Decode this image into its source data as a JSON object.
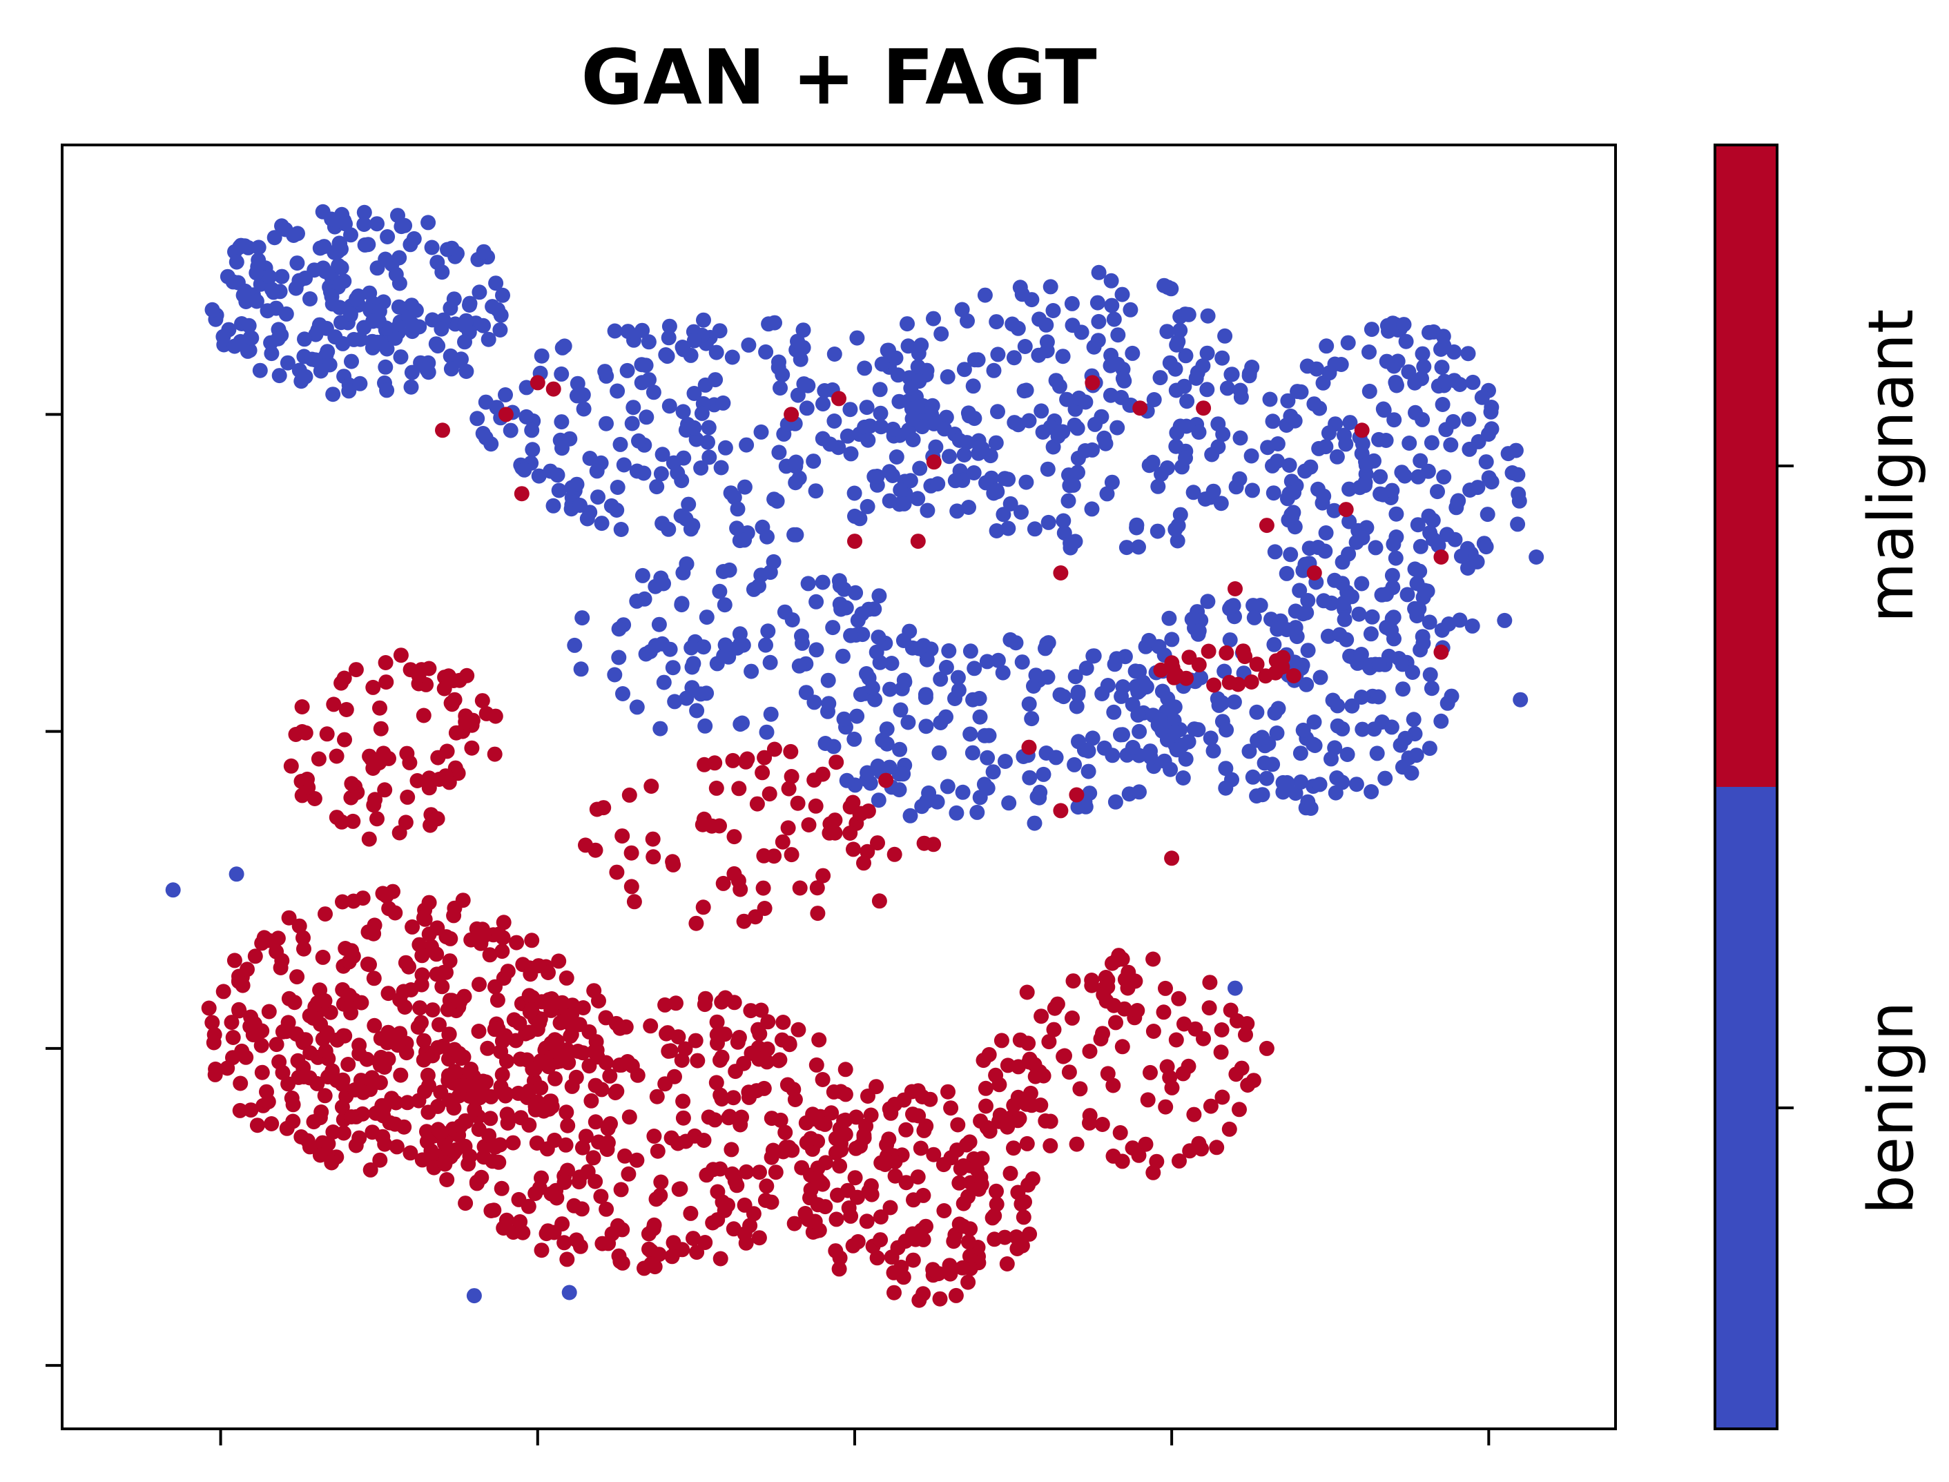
{
  "chart_data": {
    "type": "scatter",
    "title": "GAN + FAGT",
    "xlabel": "",
    "ylabel": "",
    "xlim": [
      -0.5,
      4.4
    ],
    "ylim": [
      -0.2,
      3.85
    ],
    "x_ticks": [
      0,
      1,
      2,
      3,
      4
    ],
    "y_ticks": [
      0,
      1,
      2,
      3
    ],
    "tick_labels_shown": false,
    "grid": false,
    "colorbar": {
      "categories": [
        "benign",
        "malignant"
      ],
      "colors": [
        "#3b4cc0",
        "#b40426"
      ]
    },
    "series": [
      {
        "name": "benign",
        "color": "#3b4cc0",
        "regions": [
          {
            "cx": 0.45,
            "cy": 3.35,
            "rx": 0.5,
            "ry": 0.3,
            "n": 220
          },
          {
            "cx": 1.6,
            "cy": 2.95,
            "rx": 0.8,
            "ry": 0.35,
            "n": 230
          },
          {
            "cx": 2.7,
            "cy": 3.0,
            "rx": 0.7,
            "ry": 0.45,
            "n": 240
          },
          {
            "cx": 3.7,
            "cy": 2.75,
            "rx": 0.4,
            "ry": 0.55,
            "n": 220
          },
          {
            "cx": 3.35,
            "cy": 2.1,
            "rx": 0.55,
            "ry": 0.35,
            "n": 180
          },
          {
            "cx": 2.45,
            "cy": 2.0,
            "rx": 0.6,
            "ry": 0.3,
            "n": 150
          },
          {
            "cx": 1.65,
            "cy": 2.25,
            "rx": 0.55,
            "ry": 0.3,
            "n": 110
          }
        ],
        "points": [
          {
            "x": -0.15,
            "y": 1.5
          },
          {
            "x": 0.05,
            "y": 1.55
          },
          {
            "x": 0.32,
            "y": 1.15
          },
          {
            "x": 1.1,
            "y": 0.23
          },
          {
            "x": 0.8,
            "y": 0.22
          },
          {
            "x": 3.2,
            "y": 1.19
          },
          {
            "x": 4.05,
            "y": 2.35
          },
          {
            "x": 4.1,
            "y": 2.1
          },
          {
            "x": 4.15,
            "y": 2.55
          }
        ]
      },
      {
        "name": "malignant",
        "color": "#b40426",
        "regions": [
          {
            "cx": 0.55,
            "cy": 1.05,
            "rx": 0.6,
            "ry": 0.45,
            "n": 360
          },
          {
            "cx": 1.35,
            "cy": 0.75,
            "rx": 0.7,
            "ry": 0.45,
            "n": 330
          },
          {
            "cx": 2.2,
            "cy": 0.55,
            "rx": 0.4,
            "ry": 0.35,
            "n": 160
          },
          {
            "cx": 2.85,
            "cy": 0.95,
            "rx": 0.45,
            "ry": 0.35,
            "n": 120
          },
          {
            "cx": 0.55,
            "cy": 1.95,
            "rx": 0.35,
            "ry": 0.3,
            "n": 90
          },
          {
            "cx": 1.7,
            "cy": 1.65,
            "rx": 0.55,
            "ry": 0.3,
            "n": 80
          },
          {
            "cx": 3.2,
            "cy": 2.2,
            "rx": 0.25,
            "ry": 0.06,
            "n": 25
          }
        ],
        "points": [
          {
            "x": 1.0,
            "y": 3.1
          },
          {
            "x": 0.9,
            "y": 3.0
          },
          {
            "x": 1.05,
            "y": 3.08
          },
          {
            "x": 1.8,
            "y": 3.0
          },
          {
            "x": 1.95,
            "y": 3.05
          },
          {
            "x": 2.25,
            "y": 2.85
          },
          {
            "x": 2.75,
            "y": 3.1
          },
          {
            "x": 2.9,
            "y": 3.02
          },
          {
            "x": 3.1,
            "y": 3.02
          },
          {
            "x": 3.6,
            "y": 2.95
          },
          {
            "x": 3.55,
            "y": 2.7
          },
          {
            "x": 3.85,
            "y": 2.55
          },
          {
            "x": 2.65,
            "y": 2.5
          },
          {
            "x": 2.2,
            "y": 2.6
          },
          {
            "x": 2.0,
            "y": 2.6
          },
          {
            "x": 3.2,
            "y": 2.45
          },
          {
            "x": 3.3,
            "y": 2.65
          },
          {
            "x": 3.85,
            "y": 2.25
          },
          {
            "x": 3.45,
            "y": 2.5
          },
          {
            "x": 0.7,
            "y": 2.95
          },
          {
            "x": 0.95,
            "y": 2.75
          },
          {
            "x": 3.3,
            "y": 1.0
          },
          {
            "x": 2.7,
            "y": 1.8
          },
          {
            "x": 2.55,
            "y": 1.95
          },
          {
            "x": 2.65,
            "y": 1.75
          },
          {
            "x": 3.0,
            "y": 1.6
          }
        ]
      }
    ]
  }
}
